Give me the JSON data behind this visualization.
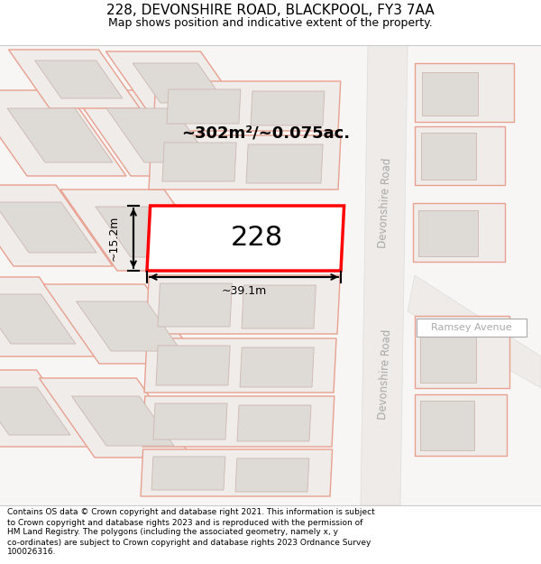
{
  "title": "228, DEVONSHIRE ROAD, BLACKPOOL, FY3 7AA",
  "subtitle": "Map shows position and indicative extent of the property.",
  "footer_lines": [
    "Contains OS data © Crown copyright and database right 2021. This information is subject",
    "to Crown copyright and database rights 2023 and is reproduced with the permission of",
    "HM Land Registry. The polygons (including the associated geometry, namely x, y",
    "co-ordinates) are subject to Crown copyright and database rights 2023 Ordnance Survey",
    "100026316."
  ],
  "area_label": "~302m²/~0.075ac.",
  "width_label": "~39.1m",
  "height_label": "~15.2m",
  "number_label": "228",
  "road_label_dev": "Devonshire Road",
  "road_label_ram": "Ramsey Avenue",
  "map_bg": "#f8f6f4",
  "plot_outline_color": "#ff0000",
  "building_fill": "#dedad6",
  "building_stroke": "#c8bdb4",
  "plot_stroke": "#e8a090",
  "title_fontsize": 11,
  "subtitle_fontsize": 9,
  "footer_fontsize": 6.5,
  "road_text_color": "#aaaaaa"
}
